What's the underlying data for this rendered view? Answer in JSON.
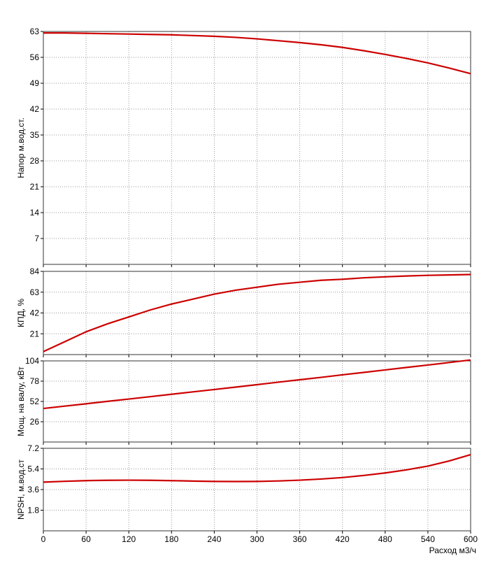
{
  "chart_data": [
    {
      "type": "line",
      "ylabel": "Напор м.вод.ст.",
      "x": [
        0,
        30,
        60,
        90,
        120,
        150,
        180,
        210,
        240,
        270,
        300,
        330,
        360,
        390,
        420,
        450,
        480,
        510,
        540,
        570,
        600
      ],
      "series": [
        {
          "color": "#cc0000",
          "values": [
            62.6,
            62.6,
            62.5,
            62.4,
            62.3,
            62.2,
            62.1,
            61.9,
            61.7,
            61.4,
            61.0,
            60.5,
            60.0,
            59.4,
            58.7,
            57.8,
            56.8,
            55.7,
            54.5,
            53.1,
            51.6
          ]
        }
      ],
      "ylim": [
        0,
        63
      ],
      "yticks": [
        7,
        14,
        21,
        28,
        35,
        42,
        49,
        56,
        63
      ],
      "grid": true
    },
    {
      "type": "line",
      "ylabel": "КПД, %",
      "x": [
        0,
        30,
        60,
        90,
        120,
        150,
        180,
        210,
        240,
        270,
        300,
        330,
        360,
        390,
        420,
        450,
        480,
        510,
        540,
        570,
        600
      ],
      "series": [
        {
          "color": "#cc0000",
          "values": [
            3,
            13,
            23,
            31,
            38,
            45,
            51,
            56,
            61,
            65,
            68,
            71,
            73,
            75,
            76,
            77.5,
            78.5,
            79.3,
            80,
            80.4,
            80.8
          ]
        }
      ],
      "ylim": [
        0,
        84
      ],
      "yticks": [
        21,
        42,
        63,
        84
      ],
      "grid": true
    },
    {
      "type": "line",
      "ylabel": "Мощ. на валу, кВт",
      "x": [
        0,
        30,
        60,
        90,
        120,
        150,
        180,
        210,
        240,
        270,
        300,
        330,
        360,
        390,
        420,
        450,
        480,
        510,
        540,
        570,
        600
      ],
      "series": [
        {
          "color": "#cc0000",
          "values": [
            43,
            46,
            49,
            52.1,
            55.1,
            58.1,
            61.2,
            64.3,
            67.3,
            70.4,
            73.5,
            76.7,
            79.8,
            82.9,
            86.1,
            89.2,
            92.4,
            95.6,
            98.7,
            101.9,
            105.2
          ]
        }
      ],
      "ylim": [
        0,
        104
      ],
      "yticks": [
        26,
        52,
        78,
        104
      ],
      "grid": true
    },
    {
      "type": "line",
      "ylabel": "NPSH, м.вод.ст",
      "xlabel": "Расход м3/ч",
      "x": [
        0,
        30,
        60,
        90,
        120,
        150,
        180,
        210,
        240,
        270,
        300,
        330,
        360,
        390,
        420,
        450,
        480,
        510,
        540,
        570,
        600
      ],
      "series": [
        {
          "color": "#cc0000",
          "values": [
            4.25,
            4.32,
            4.38,
            4.41,
            4.42,
            4.41,
            4.38,
            4.34,
            4.31,
            4.3,
            4.31,
            4.35,
            4.42,
            4.52,
            4.65,
            4.83,
            5.05,
            5.32,
            5.65,
            6.1,
            6.65
          ]
        }
      ],
      "ylim": [
        0,
        7.2
      ],
      "yticks": [
        1.8,
        3.6,
        5.4,
        7.2
      ],
      "grid": true,
      "xlim": [
        0,
        600
      ],
      "xticks": [
        0,
        60,
        120,
        180,
        240,
        300,
        360,
        420,
        480,
        540,
        600
      ]
    }
  ]
}
